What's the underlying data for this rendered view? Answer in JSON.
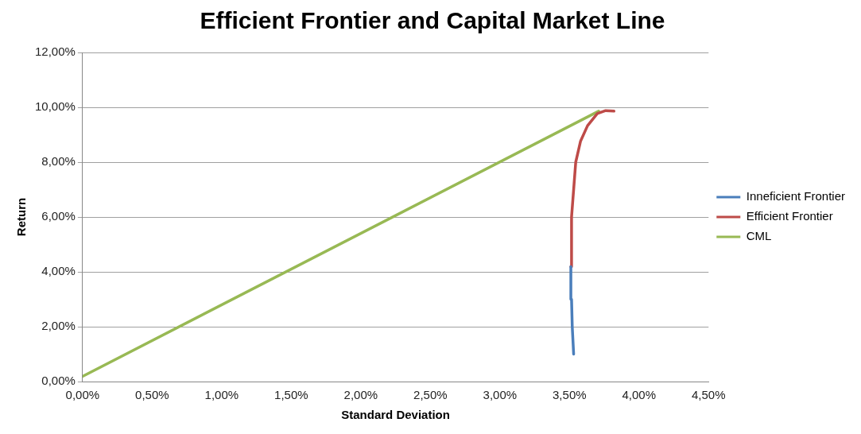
{
  "chart_data": {
    "type": "line",
    "title": "Efficient Frontier and Capital Market Line",
    "xlabel": "Standard Deviation",
    "ylabel": "Return",
    "series": [
      {
        "name": "Inneficient Frontier",
        "color": "#4a7ebb",
        "x": [
          3.53,
          3.52,
          3.515,
          3.51
        ],
        "values": [
          1.0,
          2.0,
          3.0,
          4.19
        ]
      },
      {
        "name": "Efficient Frontier",
        "color": "#be4b48",
        "x": [
          3.51,
          3.515,
          3.53,
          3.545,
          3.58,
          3.63,
          3.7,
          3.76,
          3.82
        ],
        "values": [
          4.19,
          6.0,
          7.0,
          8.0,
          8.77,
          9.33,
          9.77,
          9.88,
          9.86
        ]
      },
      {
        "name": "CML",
        "color": "#98b954",
        "x": [
          0,
          3.71
        ],
        "values": [
          0.19,
          9.86
        ]
      }
    ],
    "xlim": [
      0,
      4.5
    ],
    "xticks": [
      {
        "value": 0,
        "label": "0,00%"
      },
      {
        "value": 0.5,
        "label": "0,50%"
      },
      {
        "value": 1,
        "label": "1,00%"
      },
      {
        "value": 1.5,
        "label": "1,50%"
      },
      {
        "value": 2,
        "label": "2,00%"
      },
      {
        "value": 2.5,
        "label": "2,50%"
      },
      {
        "value": 3,
        "label": "3,00%"
      },
      {
        "value": 3.5,
        "label": "3,50%"
      },
      {
        "value": 4,
        "label": "4,00%"
      },
      {
        "value": 4.5,
        "label": "4,50%"
      }
    ],
    "ylim": [
      0,
      12
    ],
    "yticks": [
      {
        "value": 0,
        "label": "0,00%"
      },
      {
        "value": 2,
        "label": "2,00%"
      },
      {
        "value": 4,
        "label": "4,00%"
      },
      {
        "value": 6,
        "label": "6,00%"
      },
      {
        "value": 8,
        "label": "8,00%"
      },
      {
        "value": 10,
        "label": "10,00%"
      },
      {
        "value": 12,
        "label": "12,00%"
      }
    ],
    "grid": "y",
    "legend": "right",
    "marker": "none",
    "line_style": "solid"
  }
}
